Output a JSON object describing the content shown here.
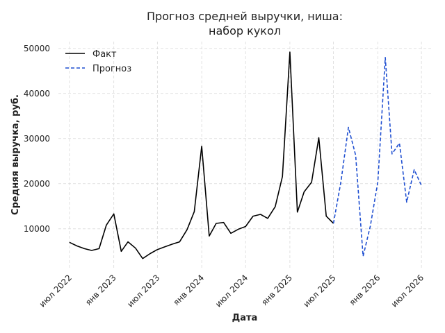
{
  "chart_data": {
    "type": "line",
    "title_lines": [
      "Прогноз средней выручки, ниша:",
      "набор кукол"
    ],
    "xlabel": "Дата",
    "ylabel": "Средняя выручка, руб.",
    "x_ticks": [
      {
        "date": "2022-07-01",
        "label": "июл 2022"
      },
      {
        "date": "2023-01-01",
        "label": "янв 2023"
      },
      {
        "date": "2023-07-01",
        "label": "июл 2023"
      },
      {
        "date": "2024-01-01",
        "label": "янв 2024"
      },
      {
        "date": "2024-07-01",
        "label": "июл 2024"
      },
      {
        "date": "2025-01-01",
        "label": "янв 2025"
      },
      {
        "date": "2025-07-01",
        "label": "июл 2025"
      },
      {
        "date": "2026-01-01",
        "label": "янв 2026"
      },
      {
        "date": "2026-07-01",
        "label": "июл 2026"
      }
    ],
    "y_ticks": [
      10000,
      20000,
      30000,
      40000,
      50000
    ],
    "y_tick_labels": [
      "10000",
      "20000",
      "30000",
      "40000",
      "50000"
    ],
    "xlim": [
      "2022-05-16",
      "2026-08-16"
    ],
    "ylim": [
      1200,
      51500
    ],
    "grid": true,
    "legend_position": "top-left",
    "series": [
      {
        "name": "Факт",
        "color": "#000000",
        "dash": "solid",
        "points": [
          {
            "x": "2022-07-01",
            "y": 7000
          },
          {
            "x": "2022-08-01",
            "y": 6200
          },
          {
            "x": "2022-09-01",
            "y": 5600
          },
          {
            "x": "2022-10-01",
            "y": 5200
          },
          {
            "x": "2022-11-01",
            "y": 5600
          },
          {
            "x": "2022-12-01",
            "y": 10800
          },
          {
            "x": "2023-01-01",
            "y": 13300
          },
          {
            "x": "2023-02-01",
            "y": 5000
          },
          {
            "x": "2023-03-01",
            "y": 7100
          },
          {
            "x": "2023-04-01",
            "y": 5700
          },
          {
            "x": "2023-05-01",
            "y": 3400
          },
          {
            "x": "2023-06-01",
            "y": 4500
          },
          {
            "x": "2023-07-01",
            "y": 5400
          },
          {
            "x": "2023-08-01",
            "y": 6000
          },
          {
            "x": "2023-09-01",
            "y": 6600
          },
          {
            "x": "2023-10-01",
            "y": 7100
          },
          {
            "x": "2023-11-01",
            "y": 9800
          },
          {
            "x": "2023-12-01",
            "y": 13800
          },
          {
            "x": "2024-01-01",
            "y": 28300
          },
          {
            "x": "2024-02-01",
            "y": 8400
          },
          {
            "x": "2024-03-01",
            "y": 11200
          },
          {
            "x": "2024-04-01",
            "y": 11400
          },
          {
            "x": "2024-05-01",
            "y": 9000
          },
          {
            "x": "2024-06-01",
            "y": 9900
          },
          {
            "x": "2024-07-01",
            "y": 10500
          },
          {
            "x": "2024-08-01",
            "y": 12800
          },
          {
            "x": "2024-09-01",
            "y": 13200
          },
          {
            "x": "2024-10-01",
            "y": 12300
          },
          {
            "x": "2024-11-01",
            "y": 14900
          },
          {
            "x": "2024-12-01",
            "y": 21600
          },
          {
            "x": "2025-01-01",
            "y": 49200
          },
          {
            "x": "2025-02-01",
            "y": 13700
          },
          {
            "x": "2025-03-01",
            "y": 18200
          },
          {
            "x": "2025-04-01",
            "y": 20300
          },
          {
            "x": "2025-05-01",
            "y": 30200
          },
          {
            "x": "2025-06-01",
            "y": 12800
          },
          {
            "x": "2025-07-01",
            "y": 11200
          }
        ]
      },
      {
        "name": "Прогноз",
        "color": "#1f4fd1",
        "dash": "dashed",
        "points": [
          {
            "x": "2025-07-01",
            "y": 11200
          },
          {
            "x": "2025-08-01",
            "y": 20500
          },
          {
            "x": "2025-09-01",
            "y": 32500
          },
          {
            "x": "2025-10-01",
            "y": 26300
          },
          {
            "x": "2025-11-01",
            "y": 3900
          },
          {
            "x": "2025-12-01",
            "y": 10600
          },
          {
            "x": "2026-01-01",
            "y": 20400
          },
          {
            "x": "2026-02-01",
            "y": 48000
          },
          {
            "x": "2026-03-01",
            "y": 26600
          },
          {
            "x": "2026-04-01",
            "y": 29000
          },
          {
            "x": "2026-05-01",
            "y": 15900
          },
          {
            "x": "2026-06-01",
            "y": 23100
          },
          {
            "x": "2026-07-01",
            "y": 19600
          }
        ]
      }
    ]
  }
}
